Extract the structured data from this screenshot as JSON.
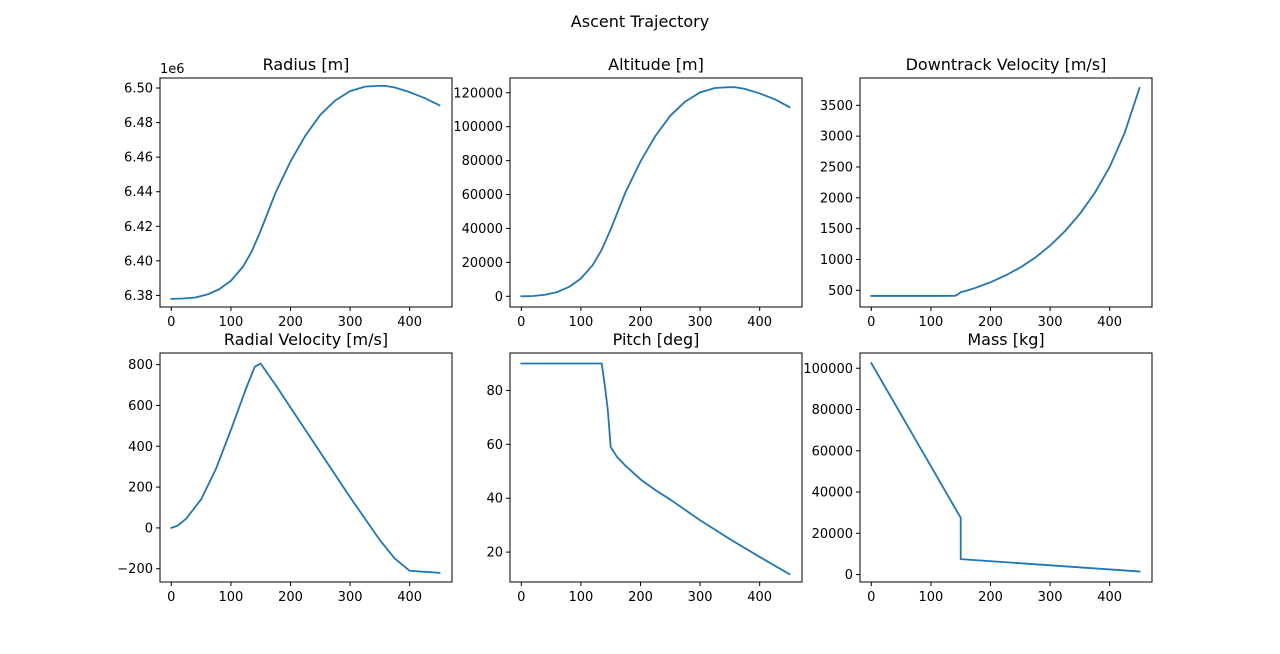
{
  "figure": {
    "title": "Ascent Trajectory",
    "line_color": "#1f77b4",
    "background": "#ffffff"
  },
  "chart_data": [
    {
      "type": "line",
      "title": "Radius [m]",
      "xlabel": "",
      "ylabel": "",
      "offset_label": "1e6",
      "xlim": [
        -19,
        471
      ],
      "ylim": [
        6.3733,
        6.5058
      ],
      "xticks": [
        0,
        100,
        200,
        300,
        400
      ],
      "yticks": [
        6.38,
        6.4,
        6.42,
        6.44,
        6.46,
        6.48,
        6.5
      ],
      "ytick_labels": [
        "6.38",
        "6.40",
        "6.42",
        "6.44",
        "6.46",
        "6.48",
        "6.50"
      ],
      "grid": false,
      "x": [
        0,
        20,
        40,
        60,
        80,
        100,
        120,
        135,
        150,
        175,
        200,
        225,
        250,
        275,
        300,
        325,
        350,
        360,
        375,
        400,
        425,
        450
      ],
      "values": [
        6.378,
        6.3782,
        6.3788,
        6.3805,
        6.3835,
        6.3885,
        6.3965,
        6.4055,
        6.4175,
        6.4395,
        6.4575,
        6.4725,
        6.4845,
        6.4928,
        6.4982,
        6.5008,
        6.5013,
        6.5012,
        6.5003,
        6.4976,
        6.4942,
        6.49
      ]
    },
    {
      "type": "line",
      "title": "Altitude [m]",
      "xlabel": "",
      "ylabel": "",
      "xlim": [
        -19,
        471
      ],
      "ylim": [
        -6300,
        128700
      ],
      "xticks": [
        0,
        100,
        200,
        300,
        400
      ],
      "yticks": [
        0,
        20000,
        40000,
        60000,
        80000,
        100000,
        120000
      ],
      "grid": false,
      "x": [
        0,
        20,
        40,
        60,
        80,
        100,
        120,
        135,
        150,
        175,
        200,
        225,
        250,
        275,
        300,
        325,
        350,
        360,
        375,
        400,
        425,
        450
      ],
      "values": [
        0,
        200,
        900,
        2500,
        5500,
        10500,
        18500,
        27500,
        39500,
        61500,
        79500,
        94500,
        106500,
        114800,
        120200,
        122800,
        123300,
        123200,
        122300,
        119600,
        116200,
        111500
      ]
    },
    {
      "type": "line",
      "title": "Downtrack Velocity [m/s]",
      "xlabel": "",
      "ylabel": "",
      "xlim": [
        -19,
        471
      ],
      "ylim": [
        229,
        3943
      ],
      "xticks": [
        0,
        100,
        200,
        300,
        400
      ],
      "yticks": [
        500,
        1000,
        1500,
        2000,
        2500,
        3000,
        3500
      ],
      "grid": false,
      "x": [
        0,
        100,
        140,
        145,
        150,
        160,
        175,
        200,
        225,
        250,
        275,
        300,
        325,
        350,
        375,
        400,
        425,
        450
      ],
      "values": [
        408,
        408,
        410,
        430,
        470,
        495,
        540,
        630,
        740,
        870,
        1030,
        1225,
        1460,
        1740,
        2080,
        2500,
        3050,
        3780
      ]
    },
    {
      "type": "line",
      "title": "Radial Velocity [m/s]",
      "xlabel": "",
      "ylabel": "",
      "xlim": [
        -19,
        471
      ],
      "ylim": [
        -265,
        857
      ],
      "xticks": [
        0,
        100,
        200,
        300,
        400
      ],
      "yticks": [
        -200,
        0,
        200,
        400,
        600,
        800
      ],
      "ytick_labels": [
        "−200",
        "0",
        "200",
        "400",
        "600",
        "800"
      ],
      "grid": false,
      "x": [
        0,
        10,
        25,
        50,
        75,
        100,
        125,
        140,
        150,
        175,
        200,
        250,
        300,
        350,
        375,
        400,
        425,
        450
      ],
      "values": [
        0,
        10,
        45,
        140,
        290,
        480,
        680,
        790,
        805,
        700,
        590,
        370,
        150,
        -60,
        -150,
        -210,
        -215,
        -220
      ]
    },
    {
      "type": "line",
      "title": "Pitch [deg]",
      "xlabel": "",
      "ylabel": "",
      "xlim": [
        -19,
        471
      ],
      "ylim": [
        8.9,
        93.9
      ],
      "xticks": [
        0,
        100,
        200,
        300,
        400
      ],
      "yticks": [
        20,
        40,
        60,
        80
      ],
      "grid": false,
      "x": [
        0,
        100,
        135,
        140,
        145,
        150,
        150.5,
        160,
        175,
        200,
        225,
        250,
        300,
        350,
        400,
        450
      ],
      "values": [
        90,
        90,
        90,
        82,
        73,
        59,
        58.8,
        55.5,
        52,
        47,
        43,
        39.5,
        31.8,
        24.8,
        18.2,
        11.8
      ]
    },
    {
      "type": "line",
      "title": "Mass [kg]",
      "xlabel": "",
      "ylabel": "",
      "xlim": [
        -19,
        471
      ],
      "ylim": [
        -3600,
        107400
      ],
      "xticks": [
        0,
        100,
        200,
        300,
        400
      ],
      "yticks": [
        0,
        20000,
        40000,
        60000,
        80000,
        100000
      ],
      "grid": false,
      "x": [
        0,
        150,
        150.01,
        450
      ],
      "values": [
        102500,
        27500,
        7500,
        1500
      ]
    }
  ]
}
